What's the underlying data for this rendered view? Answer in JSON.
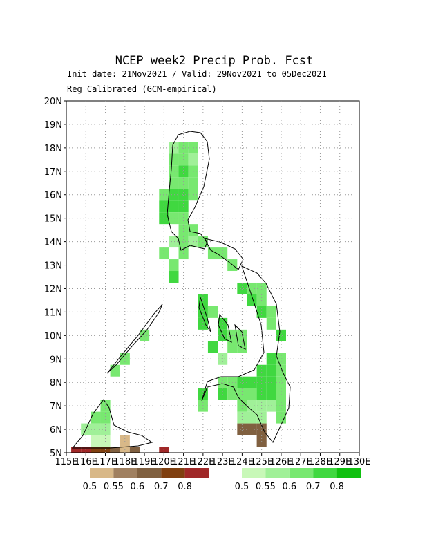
{
  "chart_data": {
    "type": "map",
    "title": "NCEP week2 Precip Prob. Fcst",
    "subtitle": "Init date: 21Nov2021 / Valid: 29Nov2021 to 05Dec2021",
    "subtitle2": "Reg Calibrated (GCM-empirical)",
    "xlim": [
      115,
      130
    ],
    "ylim": [
      5,
      20
    ],
    "xticks": [
      {
        "value": 115,
        "label": "115E"
      },
      {
        "value": 116,
        "label": "116E"
      },
      {
        "value": 117,
        "label": "117E"
      },
      {
        "value": 118,
        "label": "118E"
      },
      {
        "value": 119,
        "label": "119E"
      },
      {
        "value": 120,
        "label": "120E"
      },
      {
        "value": 121,
        "label": "121E"
      },
      {
        "value": 122,
        "label": "122E"
      },
      {
        "value": 123,
        "label": "123E"
      },
      {
        "value": 124,
        "label": "124E"
      },
      {
        "value": 125,
        "label": "125E"
      },
      {
        "value": 126,
        "label": "126E"
      },
      {
        "value": 127,
        "label": "127E"
      },
      {
        "value": 128,
        "label": "128E"
      },
      {
        "value": 129,
        "label": "129E"
      },
      {
        "value": 130,
        "label": "130E"
      }
    ],
    "yticks": [
      {
        "value": 5,
        "label": "5N"
      },
      {
        "value": 6,
        "label": "6N"
      },
      {
        "value": 7,
        "label": "7N"
      },
      {
        "value": 8,
        "label": "8N"
      },
      {
        "value": 9,
        "label": "9N"
      },
      {
        "value": 10,
        "label": "10N"
      },
      {
        "value": 11,
        "label": "11N"
      },
      {
        "value": 12,
        "label": "12N"
      },
      {
        "value": 13,
        "label": "13N"
      },
      {
        "value": 14,
        "label": "14N"
      },
      {
        "value": 15,
        "label": "15N"
      },
      {
        "value": 16,
        "label": "16N"
      },
      {
        "value": 17,
        "label": "17N"
      },
      {
        "value": 18,
        "label": "18N"
      },
      {
        "value": 19,
        "label": "19N"
      },
      {
        "value": 20,
        "label": "20N"
      }
    ],
    "grid": true,
    "levels": [
      0.5,
      0.55,
      0.6,
      0.7,
      0.8
    ],
    "dry_colors": [
      "#d8b888",
      "#a08060",
      "#806040",
      "#804010",
      "#a02828"
    ],
    "wet_colors": [
      "#c8f8b8",
      "#a0f098",
      "#78e870",
      "#40d840",
      "#10c010"
    ],
    "wet_cells": [
      [
        120.5,
        18,
        0.55
      ],
      [
        121,
        18,
        0.6
      ],
      [
        121.5,
        18,
        0.6
      ],
      [
        120.5,
        17.5,
        0.6
      ],
      [
        121,
        17.5,
        0.6
      ],
      [
        121.5,
        17.5,
        0.55
      ],
      [
        120.5,
        17,
        0.6
      ],
      [
        121,
        17,
        0.7
      ],
      [
        121.5,
        17,
        0.6
      ],
      [
        120.5,
        16.5,
        0.6
      ],
      [
        121,
        16.5,
        0.6
      ],
      [
        121.5,
        16.5,
        0.6
      ],
      [
        120,
        16,
        0.6
      ],
      [
        120.5,
        16,
        0.7
      ],
      [
        121,
        16,
        0.7
      ],
      [
        121.5,
        16,
        0.6
      ],
      [
        120,
        15.5,
        0.7
      ],
      [
        120.5,
        15.5,
        0.7
      ],
      [
        121,
        15.5,
        0.7
      ],
      [
        120,
        15,
        0.7
      ],
      [
        120.5,
        15,
        0.6
      ],
      [
        121,
        15,
        0.6
      ],
      [
        121,
        14.5,
        0.6
      ],
      [
        121.5,
        14.5,
        0.6
      ],
      [
        120.5,
        14,
        0.55
      ],
      [
        121,
        14,
        0.6
      ],
      [
        121.5,
        14,
        0.55
      ],
      [
        122,
        14,
        0.6
      ],
      [
        120,
        13.5,
        0.6
      ],
      [
        121,
        13.5,
        0.6
      ],
      [
        122.5,
        13.5,
        0.6
      ],
      [
        123,
        13.5,
        0.6
      ],
      [
        120.5,
        13,
        0.6
      ],
      [
        123.5,
        13,
        0.6
      ],
      [
        120.5,
        12.5,
        0.7
      ],
      [
        124,
        12,
        0.7
      ],
      [
        124.5,
        12,
        0.6
      ],
      [
        125,
        12,
        0.6
      ],
      [
        122,
        11.5,
        0.7
      ],
      [
        124.5,
        11.5,
        0.7
      ],
      [
        125,
        11.5,
        0.6
      ],
      [
        122,
        11,
        0.7
      ],
      [
        122.5,
        11,
        0.6
      ],
      [
        125,
        11,
        0.7
      ],
      [
        125.5,
        11,
        0.6
      ],
      [
        122,
        10.5,
        0.7
      ],
      [
        123,
        10.5,
        0.7
      ],
      [
        125.5,
        10.5,
        0.6
      ],
      [
        123,
        10,
        0.7
      ],
      [
        123.5,
        10,
        0.6
      ],
      [
        124,
        10,
        0.6
      ],
      [
        126,
        10,
        0.7
      ],
      [
        122.5,
        9.5,
        0.7
      ],
      [
        123.5,
        9.5,
        0.6
      ],
      [
        124,
        9.5,
        0.6
      ],
      [
        123,
        9,
        0.55
      ],
      [
        125.5,
        9,
        0.7
      ],
      [
        126,
        9,
        0.6
      ],
      [
        125,
        8.5,
        0.7
      ],
      [
        125.5,
        8.5,
        0.7
      ],
      [
        126,
        8.5,
        0.6
      ],
      [
        123,
        8,
        0.6
      ],
      [
        123.5,
        8,
        0.6
      ],
      [
        124,
        8,
        0.7
      ],
      [
        124.5,
        8,
        0.7
      ],
      [
        125,
        8,
        0.7
      ],
      [
        125.5,
        8,
        0.7
      ],
      [
        126,
        8,
        0.6
      ],
      [
        122,
        7.5,
        0.7
      ],
      [
        123,
        7.5,
        0.7
      ],
      [
        123.5,
        7.5,
        0.6
      ],
      [
        124,
        7.5,
        0.6
      ],
      [
        124.5,
        7.5,
        0.6
      ],
      [
        125,
        7.5,
        0.7
      ],
      [
        125.5,
        7.5,
        0.7
      ],
      [
        126,
        7.5,
        0.6
      ],
      [
        122,
        7,
        0.6
      ],
      [
        124,
        7,
        0.6
      ],
      [
        124.5,
        7,
        0.55
      ],
      [
        125,
        7,
        0.55
      ],
      [
        125.5,
        7,
        0.55
      ],
      [
        126,
        7,
        0.6
      ],
      [
        124,
        6.5,
        0.55
      ],
      [
        124.5,
        6.5,
        0.55
      ],
      [
        125,
        6.5,
        0.55
      ],
      [
        126,
        6.5,
        0.6
      ],
      [
        119,
        10,
        0.6
      ],
      [
        118,
        9,
        0.6
      ],
      [
        117.5,
        8.5,
        0.6
      ],
      [
        117,
        7,
        0.6
      ],
      [
        116.5,
        6.5,
        0.6
      ],
      [
        117,
        6.5,
        0.6
      ],
      [
        116,
        6,
        0.55
      ],
      [
        116.5,
        6,
        0.55
      ],
      [
        117,
        6,
        0.55
      ],
      [
        116.5,
        5.5,
        0.5
      ],
      [
        117,
        5.5,
        0.5
      ]
    ],
    "dry_cells": [
      [
        124,
        6,
        0.6
      ],
      [
        124.5,
        6,
        0.6
      ],
      [
        125,
        6,
        0.6
      ],
      [
        125,
        5.5,
        0.6
      ],
      [
        118,
        5.5,
        0.5
      ],
      [
        115.5,
        5,
        0.8
      ],
      [
        116,
        5,
        0.8
      ],
      [
        116.5,
        5,
        0.7
      ],
      [
        117,
        5,
        0.7
      ],
      [
        117.5,
        5,
        0.6
      ],
      [
        118,
        5,
        0.5
      ],
      [
        118.5,
        5,
        0.6
      ],
      [
        120,
        5,
        0.8
      ]
    ]
  }
}
